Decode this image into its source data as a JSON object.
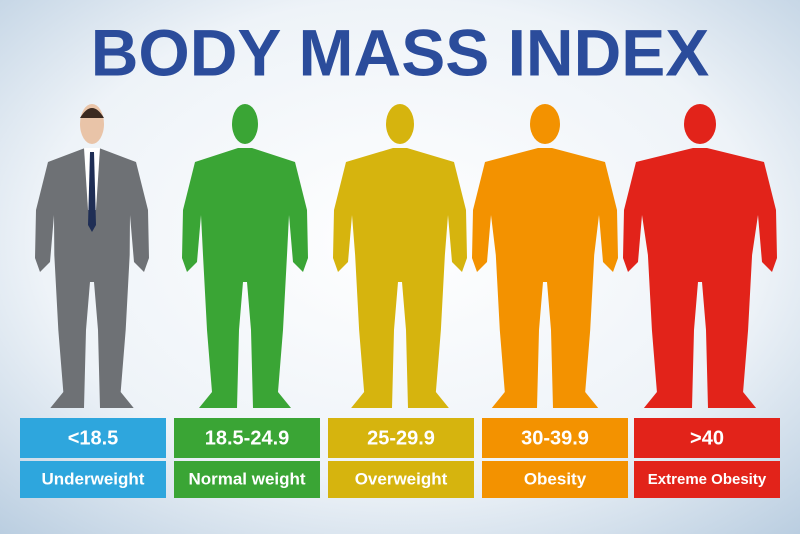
{
  "title": "BODY MASS INDEX",
  "categories": [
    {
      "range": "<18.5",
      "label": "Underweight",
      "color": "#2ea6dd"
    },
    {
      "range": "18.5-24.9",
      "label": "Normal weight",
      "color": "#3aa535"
    },
    {
      "range": "25-29.9",
      "label": "Overweight",
      "color": "#d6b40e"
    },
    {
      "range": "30-39.9",
      "label": "Obesity",
      "color": "#f39200"
    },
    {
      "range": ">40",
      "label": "Extreme Obesity",
      "color": "#e2231a"
    }
  ]
}
